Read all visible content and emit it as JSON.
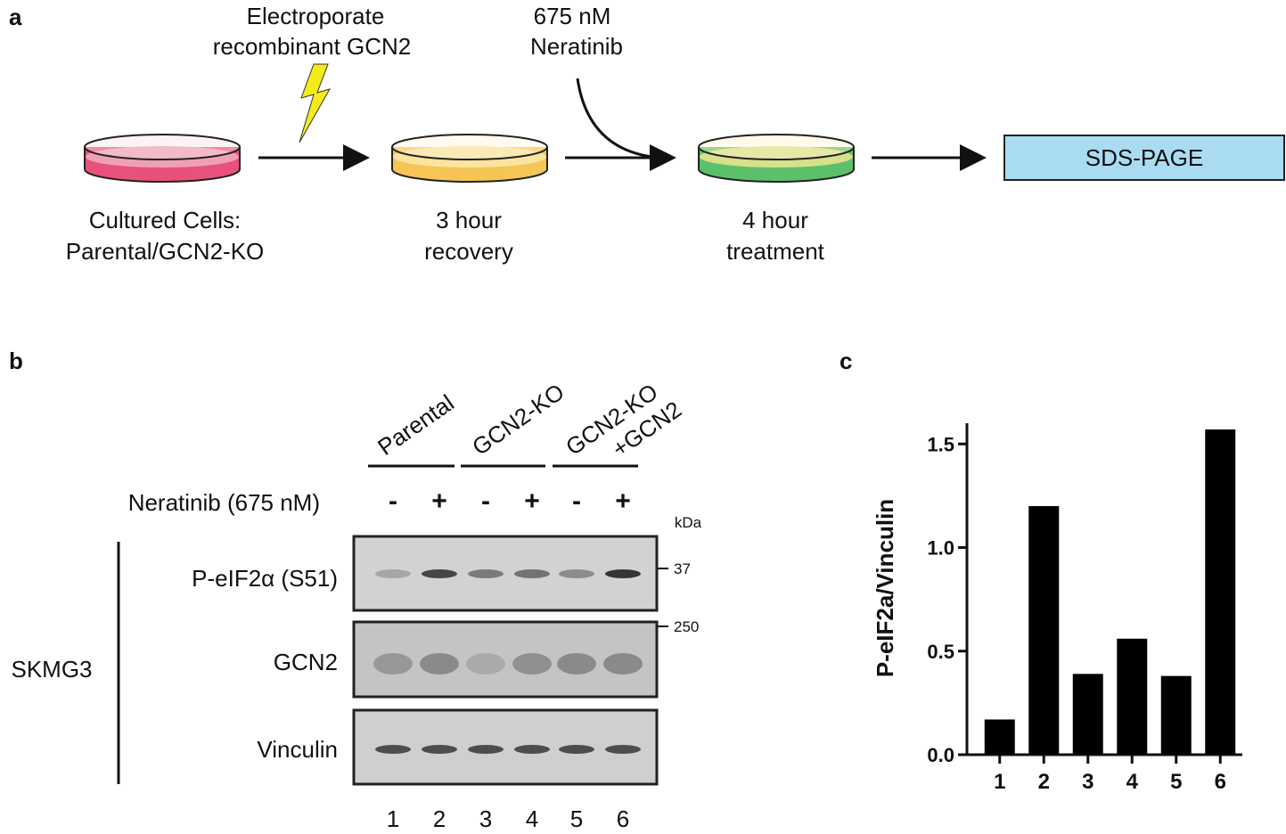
{
  "panel_a": {
    "label": "a",
    "electroporate": [
      "Electroporate",
      "recombinant GCN2"
    ],
    "drug": [
      "675 nM",
      "Neratinib"
    ],
    "stages": [
      [
        "Cultured Cells:",
        "Parental/GCN2-KO"
      ],
      [
        "3 hour",
        "recovery"
      ],
      [
        "4 hour",
        "treatment"
      ]
    ],
    "endpoint": "SDS-PAGE"
  },
  "panel_b": {
    "label": "b",
    "groups": [
      [
        "Parental"
      ],
      [
        "GCN2-KO"
      ],
      [
        "GCN2-KO",
        "+GCN2"
      ]
    ],
    "treatment": "Neratinib (675 nM)",
    "signs": [
      "-",
      "+",
      "-",
      "+",
      "-",
      "+"
    ],
    "kda_unit": "kDa",
    "blots": [
      {
        "name": "P-eIF2α (S51)",
        "marker": "37"
      },
      {
        "name": "GCN2",
        "marker": "250"
      },
      {
        "name": "Vinculin"
      }
    ],
    "cell_line": "SKMG3",
    "lanes": [
      "1",
      "2",
      "3",
      "4",
      "5",
      "6"
    ]
  },
  "chart_data": {
    "type": "bar",
    "panel_label": "c",
    "y_label": "P-eIF2a/Vinculin",
    "categories": [
      "1",
      "2",
      "3",
      "4",
      "5",
      "6"
    ],
    "values": [
      0.17,
      1.2,
      0.39,
      0.56,
      0.38,
      1.57
    ],
    "color": "#000000",
    "ylim": [
      0,
      1.6
    ],
    "yticks": [
      {
        "value": 0,
        "label": "0.0"
      },
      {
        "value": 0.5,
        "label": "0.5"
      },
      {
        "value": 1,
        "label": "1.0"
      },
      {
        "value": 1.5,
        "label": "1.5"
      }
    ]
  }
}
